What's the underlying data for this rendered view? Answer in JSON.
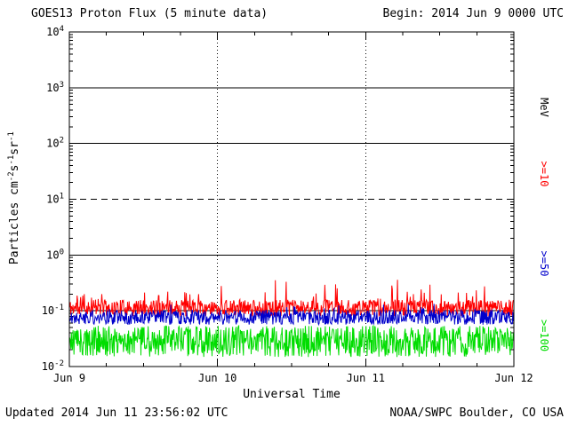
{
  "header": {
    "title": "GOES13 Proton Flux (5 minute data)",
    "begin": "Begin: 2014 Jun 9 0000 UTC"
  },
  "footer": {
    "updated": "Updated 2014 Jun 11 23:56:02 UTC",
    "credit": "NOAA/SWPC Boulder, CO USA"
  },
  "axes": {
    "xlabel": "Universal Time",
    "x_ticks": [
      "Jun 9",
      "Jun 10",
      "Jun 11",
      "Jun 12"
    ],
    "y_exponents": [
      4,
      3,
      2,
      1,
      0,
      -1,
      -2
    ],
    "ylabel_parts": [
      {
        "t": "Particles cm"
      },
      {
        "t": "-2",
        "sup": true
      },
      {
        "t": "s"
      },
      {
        "t": "-1",
        "sup": true
      },
      {
        "t": "sr"
      },
      {
        "t": "-1",
        "sup": true
      }
    ]
  },
  "right_labels": [
    {
      "text": "MeV",
      "color": "#000000"
    },
    {
      "text": ">=10",
      "color": "#ff0000"
    },
    {
      "text": ">=50",
      "color": "#0000cc"
    },
    {
      "text": ">=100",
      "color": "#00dd00"
    }
  ],
  "chart_data": {
    "type": "line",
    "title": "GOES13 Proton Flux (5 minute data)",
    "xlabel": "Universal Time",
    "ylabel": "Particles cm^-2 s^-1 sr^-1",
    "x_tick_labels": [
      "Jun 9",
      "Jun 10",
      "Jun 11",
      "Jun 12"
    ],
    "x_range_days": 3,
    "points_per_day": 288,
    "y_scale": "log10",
    "y_log_min": -2,
    "y_log_max": 4,
    "hlines": [
      {
        "log10": 3,
        "style": "solid"
      },
      {
        "log10": 2,
        "style": "solid"
      },
      {
        "log10": 1,
        "style": "dashed"
      },
      {
        "log10": 0,
        "style": "solid"
      },
      {
        "log10": -1,
        "style": "solid"
      }
    ],
    "vlines_days": [
      1,
      2
    ],
    "series": [
      {
        "name": ">=10 MeV",
        "color": "#ff0000",
        "base_log10": -0.95,
        "noise_log10": 0.15,
        "spike_chance": 0.08,
        "spike_log10": 0.4,
        "seed": 11,
        "approx_flux_range": [
          0.06,
          0.45
        ]
      },
      {
        "name": ">=50 MeV",
        "color": "#0000cc",
        "base_log10": -1.12,
        "noise_log10": 0.13,
        "spike_chance": 0.05,
        "spike_log10": 0.15,
        "seed": 22,
        "approx_flux_range": [
          0.04,
          0.12
        ]
      },
      {
        "name": ">=100 MeV",
        "color": "#00dd00",
        "base_log10": -1.55,
        "noise_log10": 0.28,
        "spike_chance": 0.0,
        "spike_log10": 0.0,
        "seed": 33,
        "approx_flux_range": [
          0.01,
          0.06
        ]
      }
    ]
  }
}
